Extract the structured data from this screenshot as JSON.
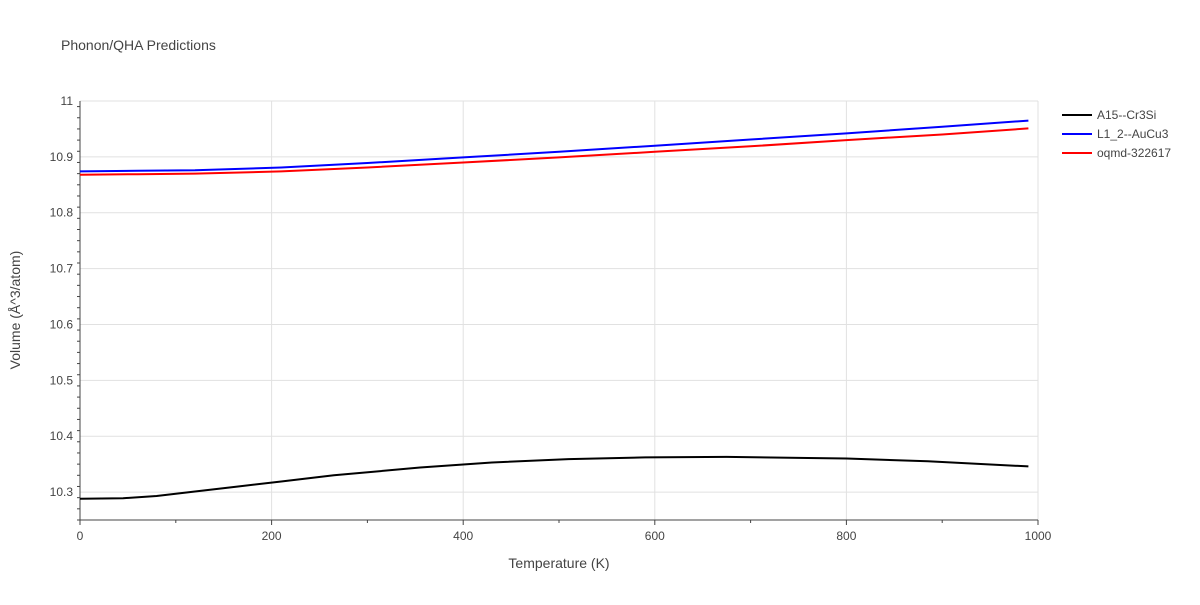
{
  "chart_data": {
    "type": "line",
    "title": "Phonon/QHA Predictions",
    "xlabel": "Temperature (K)",
    "ylabel": "Volume (Å^3/atom)",
    "xlim": [
      0,
      1000
    ],
    "ylim": [
      10.25,
      11.0
    ],
    "xticks": [
      0,
      200,
      400,
      600,
      800,
      1000
    ],
    "xtick_labels": [
      "0",
      "200",
      "400",
      "600",
      "800",
      "1000"
    ],
    "yticks": [
      10.3,
      10.4,
      10.5,
      10.6,
      10.7,
      10.8,
      10.9,
      11.0
    ],
    "ytick_labels": [
      "10.3",
      "10.4",
      "10.5",
      "10.6",
      "10.7",
      "10.8",
      "10.9",
      "11"
    ],
    "grid": true,
    "legend_position": "top-right",
    "series": [
      {
        "name": "A15--Cr3Si",
        "color": "#000000",
        "x": [
          0,
          45,
          80,
          120,
          165,
          210,
          265,
          355,
          430,
          510,
          590,
          675,
          760,
          800,
          885,
          990
        ],
        "y": [
          10.288,
          10.289,
          10.293,
          10.301,
          10.31,
          10.319,
          10.33,
          10.344,
          10.353,
          10.359,
          10.362,
          10.363,
          10.361,
          10.36,
          10.355,
          10.346
        ]
      },
      {
        "name": "L1_2--AuCu3",
        "color": "#0000ff",
        "x": [
          0,
          60,
          120,
          210,
          300,
          400,
          500,
          600,
          700,
          800,
          900,
          990
        ],
        "y": [
          10.874,
          10.875,
          10.876,
          10.881,
          10.889,
          10.899,
          10.909,
          10.92,
          10.931,
          10.942,
          10.954,
          10.965
        ]
      },
      {
        "name": "oqmd-322617",
        "color": "#ff0000",
        "x": [
          0,
          60,
          120,
          210,
          300,
          400,
          500,
          600,
          700,
          800,
          900,
          990
        ],
        "y": [
          10.868,
          10.869,
          10.87,
          10.874,
          10.881,
          10.89,
          10.899,
          10.909,
          10.919,
          10.93,
          10.94,
          10.951
        ]
      }
    ]
  }
}
